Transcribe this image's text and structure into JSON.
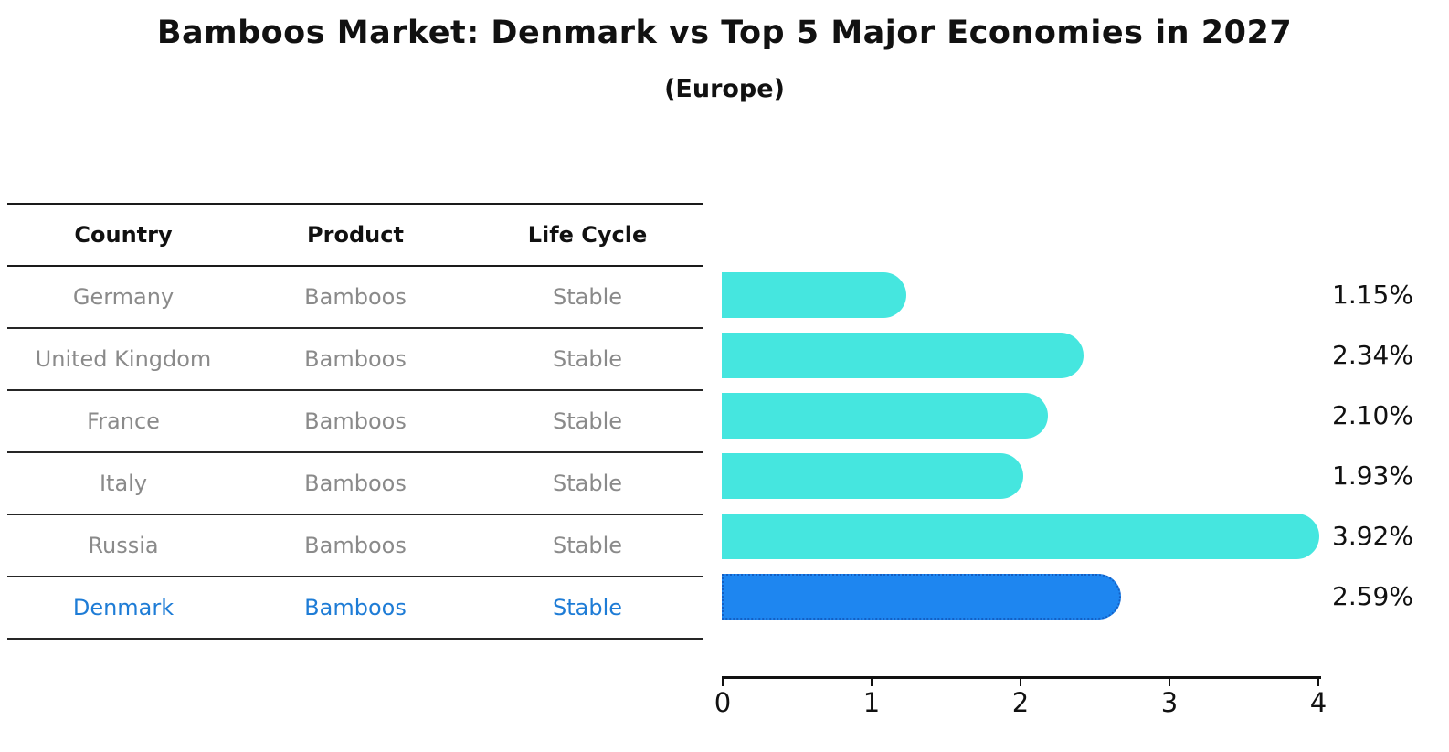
{
  "title": "Bamboos Market: Denmark vs Top 5 Major Economies in 2027",
  "subtitle": "(Europe)",
  "table": {
    "headers": [
      "Country",
      "Product",
      "Life Cycle"
    ],
    "rows": [
      {
        "country": "Germany",
        "product": "Bamboos",
        "life_cycle": "Stable",
        "highlighted": false
      },
      {
        "country": "United Kingdom",
        "product": "Bamboos",
        "life_cycle": "Stable",
        "highlighted": false
      },
      {
        "country": "France",
        "product": "Bamboos",
        "life_cycle": "Stable",
        "highlighted": false
      },
      {
        "country": "Italy",
        "product": "Bamboos",
        "life_cycle": "Stable",
        "highlighted": false
      },
      {
        "country": "Russia",
        "product": "Bamboos",
        "life_cycle": "Stable",
        "highlighted": false
      },
      {
        "country": "Denmark",
        "product": "Bamboos",
        "life_cycle": "Stable",
        "highlighted": true
      }
    ]
  },
  "chart_data": {
    "type": "bar",
    "orientation": "horizontal",
    "title": "Bamboos Market: Denmark vs Top 5 Major Economies in 2027 (Europe)",
    "categories": [
      "Germany",
      "United Kingdom",
      "France",
      "Italy",
      "Russia",
      "Denmark"
    ],
    "values": [
      1.15,
      2.34,
      2.1,
      1.93,
      3.92,
      2.59
    ],
    "value_labels": [
      "1.15%",
      "2.34%",
      "2.10%",
      "1.93%",
      "3.92%",
      "2.59%"
    ],
    "unit": "%",
    "xlim": [
      0,
      4
    ],
    "x_tick_labels": [
      "0",
      "1",
      "2",
      "3",
      "4"
    ],
    "grid": false,
    "legend": false,
    "highlight_index": 5,
    "bar_color": "#45e6df",
    "highlight_bar_color": "#1e86f0",
    "highlight_border_color": "#135fc4",
    "highlight_text_color": "#1e7cd6",
    "row_text_color": "#8a8a8a",
    "axis_color": "#111111"
  }
}
